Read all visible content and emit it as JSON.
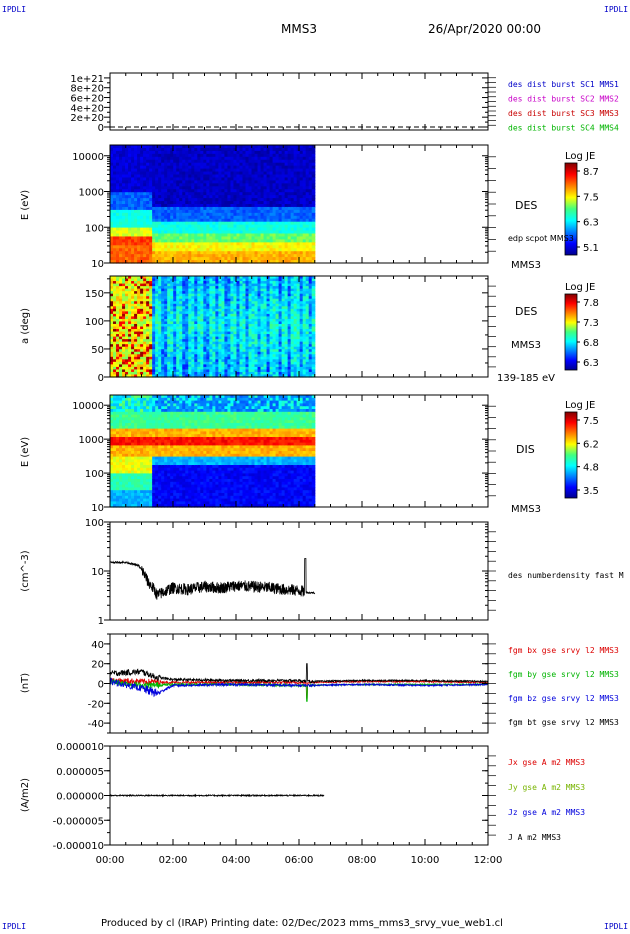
{
  "corners": {
    "tl": "IPDLI",
    "tr": "IPDLI",
    "bl": "IPDLI",
    "br": "IPDLI"
  },
  "header": {
    "spacecraft": "MMS3",
    "date": "26/Apr/2020 00:00"
  },
  "footer": {
    "text": "Produced by cl (IRAP)   Printing date: 02/Dec/2023   mms_mms3_srvy_vue_web1.cl"
  },
  "xaxis": {
    "ticks": [
      "00:00",
      "02:00",
      "04:00",
      "06:00",
      "08:00",
      "10:00",
      "12:00"
    ],
    "range_hours": [
      0,
      12
    ],
    "data_end_hours": 6.5
  },
  "panels": {
    "p1": {
      "type": "line",
      "ylabels": [
        "1e+21",
        "8e+20",
        "6e+20",
        "4e+20",
        "2e+20",
        "0"
      ],
      "yrange": [
        0,
        1.1e+21
      ],
      "legend": [
        {
          "text": "des dist burst SC1 MMS1",
          "color": "#0000c8"
        },
        {
          "text": "des dist burst SC2 MMS2",
          "color": "#c800c8"
        },
        {
          "text": "des dist burst SC3 MMS3",
          "color": "#c80000"
        },
        {
          "text": "des dist burst SC4 MMS4",
          "color": "#00b400"
        }
      ]
    },
    "p2": {
      "type": "heatmap",
      "ylabel": "E (eV)",
      "yticks": [
        "10000",
        "1000",
        "100",
        "10"
      ],
      "scale": "log",
      "right_labels": [
        "DES",
        "edp scpot MMS3",
        "MMS3"
      ],
      "colorbar": {
        "title": "Log JE",
        "ticks": [
          "8.7",
          "7.5",
          "6.3",
          "5.1"
        ]
      }
    },
    "p3": {
      "type": "heatmap",
      "ylabel": "a (deg)",
      "yticks": [
        "150",
        "100",
        "50",
        "0"
      ],
      "yrange": [
        0,
        180
      ],
      "right_labels": [
        "DES",
        "MMS3",
        "139-185 eV"
      ],
      "colorbar": {
        "title": "Log JE",
        "ticks": [
          "7.8",
          "7.3",
          "6.8",
          "6.3"
        ]
      }
    },
    "p4": {
      "type": "heatmap",
      "ylabel": "E (eV)",
      "yticks": [
        "10000",
        "1000",
        "100",
        "10"
      ],
      "scale": "log",
      "right_labels": [
        "DIS",
        "MMS3"
      ],
      "colorbar": {
        "title": "Log JE",
        "ticks": [
          "7.5",
          "6.2",
          "4.8",
          "3.5"
        ]
      }
    },
    "p5": {
      "type": "line",
      "ylabel": "(cm^-3)",
      "yticks": [
        "100",
        "10",
        "1"
      ],
      "scale": "log",
      "legend": [
        {
          "text": "des numberdensity fast M",
          "color": "#000000"
        }
      ]
    },
    "p6": {
      "type": "line",
      "ylabel": "(nT)",
      "yticks": [
        "40",
        "20",
        "0",
        "-20",
        "-40"
      ],
      "yrange": [
        -50,
        50
      ],
      "legend": [
        {
          "text": "fgm bx gse srvy l2 MMS3",
          "color": "#dc0000"
        },
        {
          "text": "fgm by gse srvy l2 MMS3",
          "color": "#00b400"
        },
        {
          "text": "fgm bz gse srvy l2 MMS3",
          "color": "#0000dc"
        },
        {
          "text": "fgm bt gse srvy l2 MMS3",
          "color": "#000000"
        }
      ]
    },
    "p7": {
      "type": "line",
      "ylabel": "(A/m2)",
      "yticks": [
        "0.000010",
        "0.000005",
        "0.000000",
        "-0.000005",
        "-0.000010"
      ],
      "yrange": [
        -1e-05,
        1e-05
      ],
      "legend": [
        {
          "text": "Jx gse A m2 MMS3",
          "color": "#dc0000"
        },
        {
          "text": "Jy gse A m2 MMS3",
          "color": "#78b400"
        },
        {
          "text": "Jz gse A m2 MMS3",
          "color": "#0000dc"
        },
        {
          "text": "J A m2 MMS3",
          "color": "#000000"
        }
      ]
    }
  },
  "chart_data": [
    {
      "type": "line",
      "title": "",
      "series": [
        {
          "name": "des dist burst SC3 MMS3",
          "x": [
            0,
            12
          ],
          "y": [
            0,
            0
          ]
        }
      ],
      "ylim": [
        0,
        1.1e+21
      ]
    },
    {
      "type": "heatmap",
      "ylabel": "E (eV)",
      "colorbar_label": "Log JE",
      "ylim": [
        10,
        20000
      ],
      "clim": [
        5.1,
        8.7
      ],
      "description_peak_band_eV": [
        30,
        120
      ]
    },
    {
      "type": "heatmap",
      "ylabel": "a (deg)",
      "colorbar_label": "Log JE",
      "ylim": [
        0,
        180
      ],
      "clim": [
        6.3,
        7.8
      ]
    },
    {
      "type": "heatmap",
      "ylabel": "E (eV)",
      "colorbar_label": "Log JE",
      "ylim": [
        10,
        20000
      ],
      "clim": [
        3.5,
        7.5
      ],
      "peak_energy_eV": 800
    },
    {
      "type": "line",
      "ylabel": "(cm^-3)",
      "ylim": [
        1,
        100
      ],
      "series": [
        {
          "name": "des numberdensity fast M",
          "x": [
            0,
            0.5,
            0.9,
            1.2,
            1.5,
            2.0,
            2.5,
            3.0,
            3.5,
            4.0,
            4.5,
            5.0,
            5.5,
            6.0,
            6.3,
            6.5
          ],
          "y": [
            15,
            15,
            13,
            6,
            3.2,
            4.5,
            4.2,
            4.8,
            4.5,
            5.0,
            4.8,
            4.6,
            4.2,
            4.0,
            3.6,
            3.6
          ]
        }
      ]
    },
    {
      "type": "line",
      "ylabel": "(nT)",
      "ylim": [
        -50,
        50
      ],
      "series": [
        {
          "name": "fgm bt gse srvy l2 MMS3",
          "x": [
            0,
            1,
            1.5,
            2,
            4,
            6,
            6.3,
            8,
            10,
            12
          ],
          "y": [
            10,
            12,
            6,
            4,
            3,
            3,
            2,
            3,
            3,
            2
          ]
        },
        {
          "name": "fgm bx gse srvy l2 MMS3",
          "x": [
            0,
            1,
            2,
            4,
            6,
            8,
            10,
            12
          ],
          "y": [
            3,
            2,
            1,
            1,
            1,
            2,
            2,
            1
          ]
        },
        {
          "name": "fgm by gse srvy l2 MMS3",
          "x": [
            0,
            1,
            2,
            4,
            6,
            8,
            10,
            12
          ],
          "y": [
            2,
            -2,
            -1,
            -1,
            -2,
            -1,
            -1,
            -1
          ]
        },
        {
          "name": "fgm bz gse srvy l2 MMS3",
          "x": [
            0,
            1,
            1.5,
            2,
            4,
            6,
            8,
            10,
            12
          ],
          "y": [
            2,
            -5,
            -10,
            -2,
            -1,
            -2,
            -1,
            -2,
            -1
          ]
        }
      ]
    },
    {
      "type": "line",
      "ylabel": "(A/m2)",
      "ylim": [
        -1e-05,
        1e-05
      ],
      "series": [
        {
          "name": "J A m2 MMS3",
          "x": [
            0,
            2,
            4,
            6,
            8,
            10,
            12
          ],
          "y": [
            0,
            0,
            0,
            0,
            0,
            0,
            0
          ]
        }
      ]
    }
  ]
}
